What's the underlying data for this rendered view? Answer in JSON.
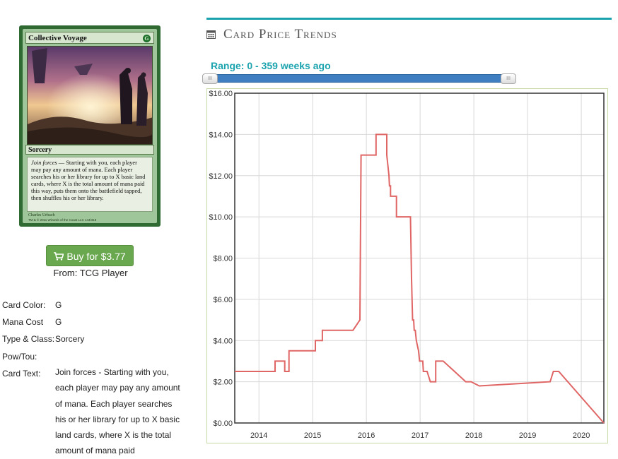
{
  "card": {
    "name": "Collective Voyage",
    "mana_symbol": "G",
    "type_line": "Sorcery",
    "rules_keyword": "Join forces",
    "rules_text": " — Starting with you, each player may pay any amount of mana. Each player searches his or her library for up to X basic land cards, where X is the total amount of mana paid this way, puts them onto the battlefield tapped, then shuffles his or her library.",
    "artist": "Charles Urbach",
    "legal": "TM & © 2011 Wizards of the Coast LLC 144/318"
  },
  "buy": {
    "label": "Buy for $3.77",
    "source": "From: TCG Player"
  },
  "info": {
    "color_label": "Card Color:",
    "color_value": "G",
    "cost_label": "Mana Cost",
    "cost_value": "G",
    "type_label": "Type & Class:",
    "type_value": "Sorcery",
    "pt_label": "Pow/Tou:",
    "pt_value": "",
    "text_label": "Card Text:",
    "text_value": "Join forces - Starting with you, each player may pay any amount of mana. Each player searches his or her library for up to X basic land cards, where X is the total amount of mana paid"
  },
  "trends": {
    "title": "Card Price Trends",
    "range_label": "Range: 0 - 359 weeks ago",
    "range_fraction": [
      0,
      1
    ]
  },
  "colors": {
    "accent": "#1aa3ae",
    "buy_button": "#6aa84f",
    "line": "#e06666",
    "slider": "#3f7fc1"
  },
  "chart_data": {
    "type": "line",
    "title": "",
    "xlabel": "",
    "ylabel": "",
    "xlim": [
      2013.55,
      2020.42
    ],
    "ylim": [
      0,
      16
    ],
    "x_ticks": [
      2014,
      2015,
      2016,
      2017,
      2018,
      2019,
      2020
    ],
    "x_tick_labels": [
      "2014",
      "2015",
      "2016",
      "2017",
      "2018",
      "2019",
      "2020"
    ],
    "y_ticks": [
      0,
      2,
      4,
      6,
      8,
      10,
      12,
      14,
      16
    ],
    "y_tick_labels": [
      "$0.00",
      "$2.00",
      "$4.00",
      "$6.00",
      "$8.00",
      "$10.00",
      "$12.00",
      "$14.00",
      "$16.00"
    ],
    "grid": true,
    "series": [
      {
        "x": [
          2013.55,
          2014.3,
          2014.3,
          2014.48,
          2014.48,
          2014.56,
          2014.56,
          2015.05,
          2015.05,
          2015.18,
          2015.18,
          2015.7,
          2015.75,
          2015.88,
          2015.9,
          2016.18,
          2016.18,
          2016.38,
          2016.38,
          2016.42,
          2016.43,
          2016.45,
          2016.45,
          2016.56,
          2016.56,
          2016.82,
          2016.84,
          2016.86,
          2016.88,
          2016.89,
          2016.91,
          2016.93,
          2016.97,
          2016.99,
          2017.05,
          2017.06,
          2017.13,
          2017.19,
          2017.19,
          2017.29,
          2017.29,
          2017.43,
          2017.85,
          2017.95,
          2018.1,
          2019.42,
          2019.48,
          2019.58,
          2020.42
        ],
        "y": [
          2.5,
          2.5,
          3.0,
          3.0,
          2.5,
          2.5,
          3.5,
          3.5,
          4.0,
          4.0,
          4.5,
          4.5,
          4.5,
          5.0,
          13.0,
          13.0,
          14.0,
          14.0,
          13.0,
          12.0,
          11.5,
          11.5,
          11.0,
          11.0,
          10.0,
          10.0,
          7.0,
          5.0,
          5.0,
          4.5,
          4.5,
          4.0,
          3.5,
          3.0,
          3.0,
          2.5,
          2.5,
          2.0,
          2.0,
          2.0,
          3.0,
          3.0,
          2.0,
          2.0,
          1.8,
          2.0,
          2.5,
          2.5,
          0.0
        ]
      }
    ]
  }
}
